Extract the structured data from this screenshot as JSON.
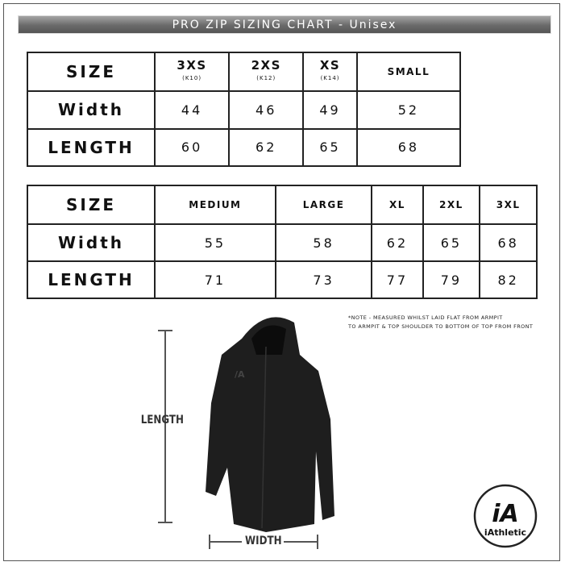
{
  "title": "PRO ZIP SIZING CHART - Unisex",
  "tables": [
    {
      "header": "SIZE",
      "sizes": [
        {
          "label": "3XS",
          "sub": "(K10)"
        },
        {
          "label": "2XS",
          "sub": "(K12)"
        },
        {
          "label": "XS",
          "sub": "(K14)"
        },
        {
          "label": "SMALL",
          "sub": ""
        }
      ],
      "rows": [
        {
          "label": "Width",
          "values": [
            "44",
            "46",
            "49",
            "52"
          ]
        },
        {
          "label": "LENGTH",
          "values": [
            "60",
            "62",
            "65",
            "68"
          ]
        }
      ]
    },
    {
      "header": "SIZE",
      "sizes": [
        {
          "label": "MEDIUM",
          "sub": ""
        },
        {
          "label": "LARGE",
          "sub": ""
        },
        {
          "label": "XL",
          "sub": ""
        },
        {
          "label": "2XL",
          "sub": ""
        },
        {
          "label": "3XL",
          "sub": ""
        }
      ],
      "rows": [
        {
          "label": "Width",
          "values": [
            "55",
            "58",
            "62",
            "65",
            "68"
          ]
        },
        {
          "label": "LENGTH",
          "values": [
            "71",
            "73",
            "77",
            "79",
            "82"
          ]
        }
      ]
    }
  ],
  "note": [
    "*NOTE - MEASURED WHILST LAID FLAT FROM ARMPIT",
    "TO ARMPIT & TOP SHOULDER TO BOTTOM OF TOP FROM FRONT"
  ],
  "length_label": "LENGTH",
  "width_label": "WIDTH",
  "logo": {
    "mark": "iA",
    "text": "iAthletic"
  }
}
